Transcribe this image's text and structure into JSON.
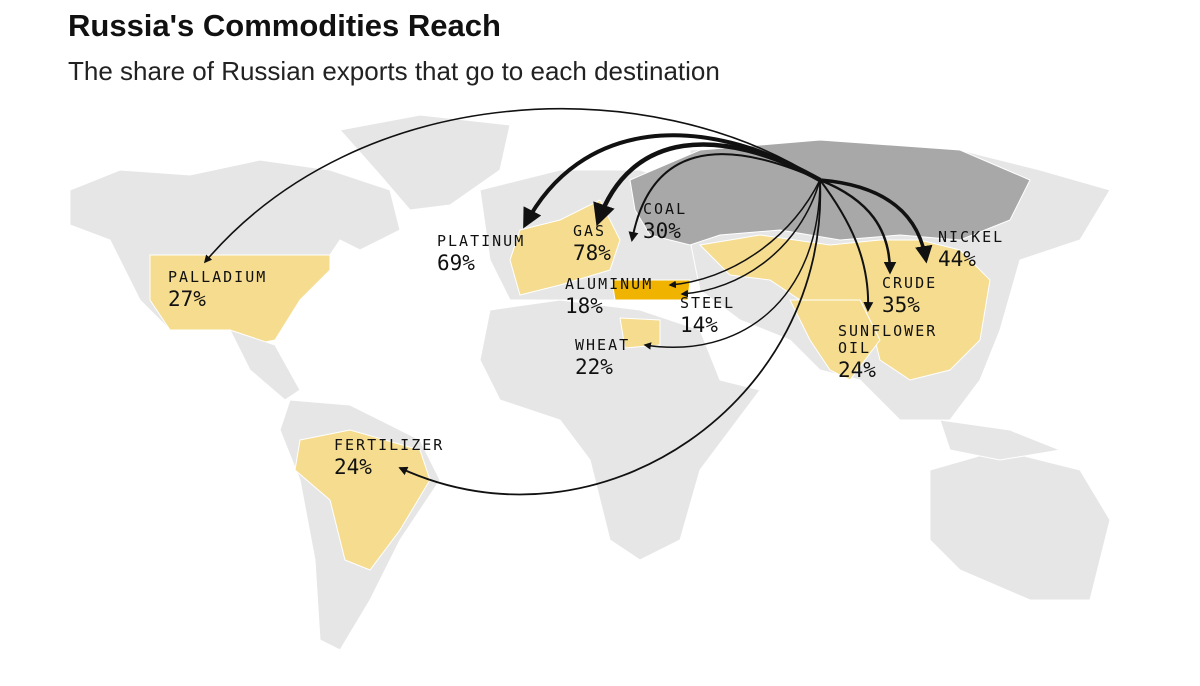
{
  "header": {
    "title": "Russia's Commodities Reach",
    "subtitle": "The share of Russian exports that go to each destination"
  },
  "flows": [
    {
      "label": [
        "PALLADIUM"
      ],
      "share": "27%"
    },
    {
      "label": [
        "PLATINUM"
      ],
      "share": "69%"
    },
    {
      "label": [
        "GAS"
      ],
      "share": "78%"
    },
    {
      "label": [
        "COAL"
      ],
      "share": "30%"
    },
    {
      "label": [
        "ALUMINUM"
      ],
      "share": "18%"
    },
    {
      "label": [
        "STEEL"
      ],
      "share": "14%"
    },
    {
      "label": [
        "WHEAT"
      ],
      "share": "22%"
    },
    {
      "label": [
        "FERTILIZER"
      ],
      "share": "24%"
    },
    {
      "label": [
        "NICKEL"
      ],
      "share": "44%"
    },
    {
      "label": [
        "CRUDE"
      ],
      "share": "35%"
    },
    {
      "label": [
        "SUNFLOWER",
        "OIL"
      ],
      "share": "24%"
    }
  ]
}
